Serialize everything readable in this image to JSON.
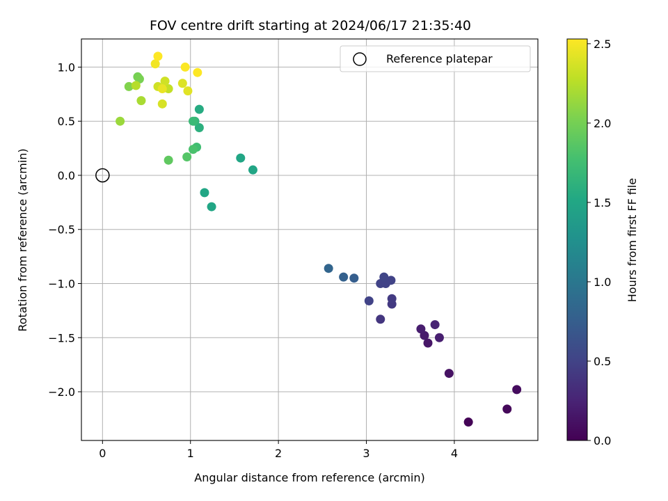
{
  "chart_data": {
    "type": "scatter",
    "title": "FOV centre drift starting at 2024/06/17 21:35:40",
    "xlabel": "Angular distance from reference (arcmin)",
    "ylabel": "Rotation from reference (arcmin)",
    "xlim": [
      -0.24,
      4.95
    ],
    "ylim": [
      -2.45,
      1.26
    ],
    "xticks": [
      0,
      1,
      2,
      3,
      4
    ],
    "yticks": [
      -2.0,
      -1.5,
      -1.0,
      -0.5,
      0.0,
      0.5,
      1.0
    ],
    "xtick_labels": [
      "0",
      "1",
      "2",
      "3",
      "4"
    ],
    "ytick_labels": [
      "−2.0",
      "−1.5",
      "−1.0",
      "−0.5",
      "0.0",
      "0.5",
      "1.0"
    ],
    "grid": true,
    "legend": {
      "position": "top-right",
      "entries": [
        "Reference platepar"
      ]
    },
    "reference_point": {
      "x": 0,
      "y": 0,
      "label": "Reference platepar"
    },
    "colorbar": {
      "label": "Hours from first FF file",
      "range": [
        0.0,
        2.53
      ],
      "ticks": [
        0.0,
        0.5,
        1.0,
        1.5,
        2.0,
        2.5
      ],
      "tick_labels": [
        "0.0",
        "0.5",
        "1.0",
        "1.5",
        "2.0",
        "2.5"
      ],
      "colormap": "viridis"
    },
    "points": [
      {
        "x": 4.16,
        "y": -2.28,
        "hours": 0.02
      },
      {
        "x": 4.6,
        "y": -2.16,
        "hours": 0.05
      },
      {
        "x": 4.71,
        "y": -1.98,
        "hours": 0.08
      },
      {
        "x": 3.94,
        "y": -1.83,
        "hours": 0.12
      },
      {
        "x": 3.7,
        "y": -1.55,
        "hours": 0.15
      },
      {
        "x": 3.66,
        "y": -1.48,
        "hours": 0.18
      },
      {
        "x": 3.62,
        "y": -1.42,
        "hours": 0.2
      },
      {
        "x": 3.83,
        "y": -1.5,
        "hours": 0.22
      },
      {
        "x": 3.78,
        "y": -1.38,
        "hours": 0.25
      },
      {
        "x": 3.16,
        "y": -1.33,
        "hours": 0.4
      },
      {
        "x": 3.29,
        "y": -1.19,
        "hours": 0.42
      },
      {
        "x": 3.29,
        "y": -1.14,
        "hours": 0.44
      },
      {
        "x": 3.03,
        "y": -1.16,
        "hours": 0.5
      },
      {
        "x": 3.16,
        "y": -1.0,
        "hours": 0.5
      },
      {
        "x": 3.22,
        "y": -1.0,
        "hours": 0.5
      },
      {
        "x": 3.28,
        "y": -0.97,
        "hours": 0.5
      },
      {
        "x": 3.2,
        "y": -0.94,
        "hours": 0.52
      },
      {
        "x": 2.86,
        "y": -0.95,
        "hours": 0.75
      },
      {
        "x": 2.74,
        "y": -0.94,
        "hours": 0.78
      },
      {
        "x": 2.57,
        "y": -0.86,
        "hours": 0.82
      },
      {
        "x": 1.24,
        "y": -0.29,
        "hours": 1.5
      },
      {
        "x": 1.16,
        "y": -0.16,
        "hours": 1.5
      },
      {
        "x": 1.71,
        "y": 0.05,
        "hours": 1.48
      },
      {
        "x": 1.57,
        "y": 0.16,
        "hours": 1.5
      },
      {
        "x": 1.1,
        "y": 0.61,
        "hours": 1.55
      },
      {
        "x": 1.1,
        "y": 0.44,
        "hours": 1.6
      },
      {
        "x": 1.05,
        "y": 0.5,
        "hours": 1.65
      },
      {
        "x": 1.03,
        "y": 0.5,
        "hours": 1.7
      },
      {
        "x": 1.07,
        "y": 0.26,
        "hours": 1.75
      },
      {
        "x": 1.03,
        "y": 0.24,
        "hours": 1.8
      },
      {
        "x": 0.96,
        "y": 0.17,
        "hours": 1.85
      },
      {
        "x": 0.75,
        "y": 0.14,
        "hours": 1.9
      },
      {
        "x": 0.4,
        "y": 0.91,
        "hours": 2.0
      },
      {
        "x": 0.42,
        "y": 0.89,
        "hours": 2.02
      },
      {
        "x": 0.3,
        "y": 0.82,
        "hours": 2.05
      },
      {
        "x": 0.2,
        "y": 0.5,
        "hours": 2.15
      },
      {
        "x": 0.44,
        "y": 0.69,
        "hours": 2.2
      },
      {
        "x": 0.38,
        "y": 0.83,
        "hours": 2.25
      },
      {
        "x": 0.75,
        "y": 0.8,
        "hours": 2.3
      },
      {
        "x": 0.71,
        "y": 0.87,
        "hours": 2.35
      },
      {
        "x": 0.63,
        "y": 0.82,
        "hours": 2.35
      },
      {
        "x": 0.68,
        "y": 0.66,
        "hours": 2.38
      },
      {
        "x": 0.91,
        "y": 0.85,
        "hours": 2.4
      },
      {
        "x": 0.97,
        "y": 0.78,
        "hours": 2.42
      },
      {
        "x": 0.68,
        "y": 0.8,
        "hours": 2.45
      },
      {
        "x": 0.6,
        "y": 1.03,
        "hours": 2.48
      },
      {
        "x": 0.94,
        "y": 1.0,
        "hours": 2.52
      },
      {
        "x": 1.08,
        "y": 0.95,
        "hours": 2.53
      },
      {
        "x": 0.63,
        "y": 1.1,
        "hours": 2.53
      }
    ]
  }
}
